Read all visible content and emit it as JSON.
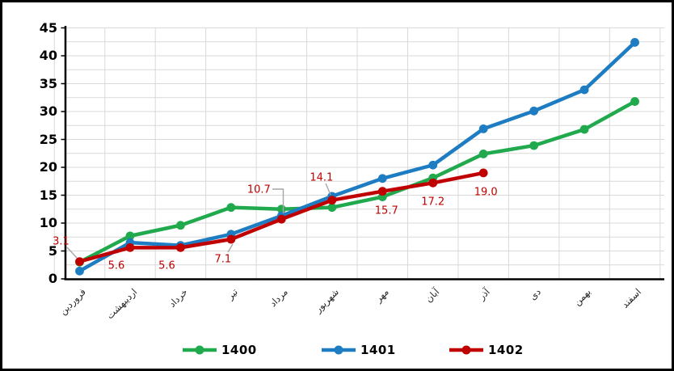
{
  "chart_data": {
    "type": "line",
    "title": "",
    "xlabel": "",
    "ylabel": "",
    "categories": [
      "فروردین",
      "اردیبهشت",
      "خرداد",
      "تیر",
      "مرداد",
      "شهریور",
      "مهر",
      "آبان",
      "آذر",
      "دی",
      "بهمن",
      "اسفند"
    ],
    "series": [
      {
        "name": "1400",
        "color": "#21A94D",
        "values": [
          3.0,
          7.7,
          9.6,
          12.8,
          12.5,
          12.8,
          14.7,
          18.1,
          22.4,
          23.9,
          26.8,
          31.8
        ]
      },
      {
        "name": "1401",
        "color": "#1E7CC2",
        "values": [
          1.4,
          6.5,
          6.0,
          8.0,
          11.3,
          14.8,
          18.0,
          20.4,
          26.9,
          30.1,
          33.9,
          42.4
        ]
      },
      {
        "name": "1402",
        "color": "#C00000",
        "values": [
          3.1,
          5.6,
          5.6,
          7.1,
          10.7,
          14.1,
          15.7,
          17.2,
          19.0
        ]
      }
    ],
    "data_labels": {
      "series": "1402",
      "values": [
        "3.1",
        "5.6",
        "5.6",
        "7.1",
        "10.7",
        "14.1",
        "15.7",
        "17.2",
        "19.0"
      ]
    },
    "y_ticks": [
      "0",
      "5",
      "10",
      "15",
      "20",
      "25",
      "30",
      "35",
      "40",
      "45"
    ],
    "ylim": [
      0,
      45
    ],
    "grid": {
      "horizontal_step": 2.5,
      "vertical": "between-categories",
      "color": "#D9D9D9"
    },
    "axis_color": "#000000",
    "leader_line_color": "#A6A6A6",
    "data_label_color": "#C00000",
    "legend_position": "bottom",
    "legend_items": [
      "1400",
      "1401",
      "1402"
    ]
  }
}
